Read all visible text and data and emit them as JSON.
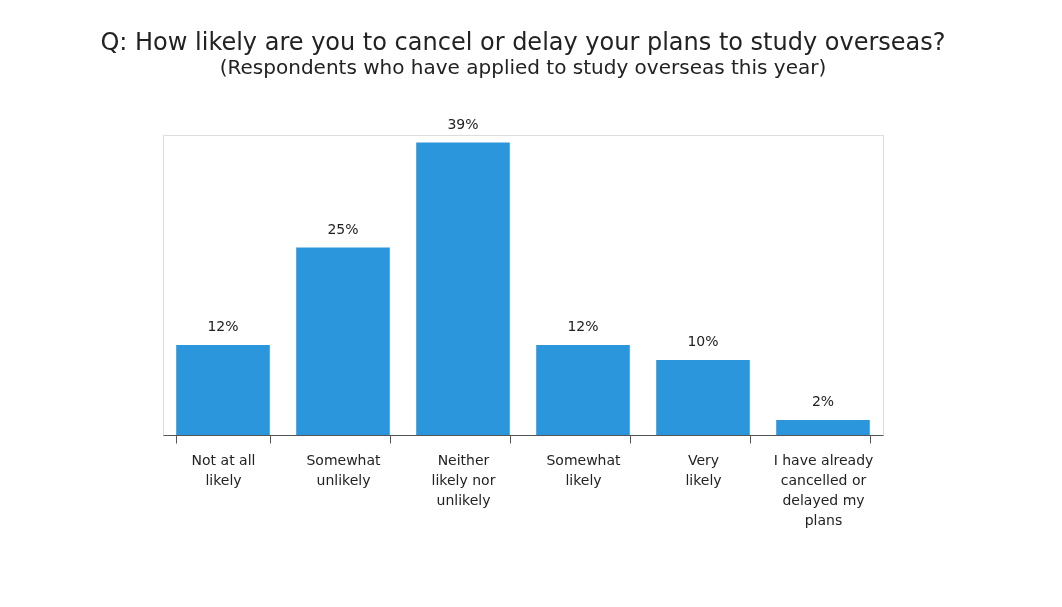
{
  "chart_data": {
    "type": "bar",
    "title": "Q: How likely are you to cancel or delay your plans to study overseas?",
    "subtitle": "(Respondents who have applied to study overseas this year)",
    "categories": [
      "Not at all\nlikely",
      "Somewhat\nunlikely",
      "Neither\nlikely nor\nunlikely",
      "Somewhat\nlikely",
      "Very\nlikely",
      "I have already\ncancelled or\ndelayed my\nplans"
    ],
    "values": [
      12,
      25,
      39,
      12,
      10,
      2
    ],
    "value_labels": [
      "12%",
      "25%",
      "39%",
      "12%",
      "10%",
      "2%"
    ],
    "color": "#2b96dc",
    "grid": false
  }
}
